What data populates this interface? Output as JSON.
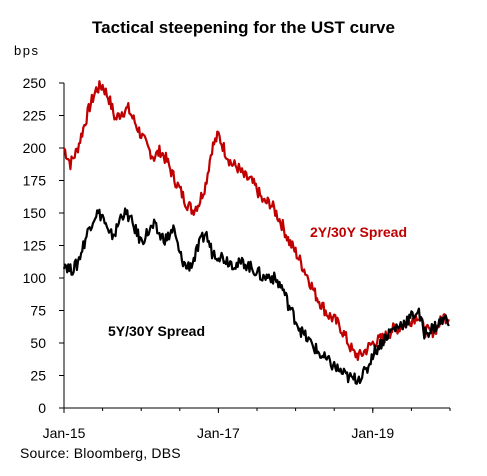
{
  "source": "Source: Bloomberg, DBS",
  "chart_data": {
    "type": "line",
    "title": "Tactical steepening for the UST curve",
    "ylabel": "bps",
    "xlabel": "",
    "ylim": [
      0,
      250
    ],
    "yticks": [
      0,
      25,
      50,
      75,
      100,
      125,
      150,
      175,
      200,
      225,
      250
    ],
    "xlim": [
      "2015-01",
      "2019-12"
    ],
    "xticks": [
      {
        "value": "2015-01",
        "label": "Jan-15"
      },
      {
        "value": "2017-01",
        "label": "Jan-17"
      },
      {
        "value": "2019-01",
        "label": "Jan-19"
      }
    ],
    "grid": false,
    "series": [
      {
        "name": "2Y/30Y Spread",
        "color": "#c00000",
        "x": [
          "2015-01",
          "2015-02",
          "2015-03",
          "2015-04",
          "2015-05",
          "2015-06",
          "2015-07",
          "2015-08",
          "2015-09",
          "2015-10",
          "2015-11",
          "2015-12",
          "2016-01",
          "2016-02",
          "2016-03",
          "2016-04",
          "2016-05",
          "2016-06",
          "2016-07",
          "2016-08",
          "2016-09",
          "2016-10",
          "2016-11",
          "2016-12",
          "2017-01",
          "2017-02",
          "2017-03",
          "2017-04",
          "2017-05",
          "2017-06",
          "2017-07",
          "2017-08",
          "2017-09",
          "2017-10",
          "2017-11",
          "2017-12",
          "2018-01",
          "2018-02",
          "2018-03",
          "2018-04",
          "2018-05",
          "2018-06",
          "2018-07",
          "2018-08",
          "2018-09",
          "2018-10",
          "2018-11",
          "2018-12",
          "2019-01",
          "2019-02",
          "2019-03",
          "2019-04",
          "2019-05",
          "2019-06",
          "2019-07",
          "2019-08",
          "2019-09",
          "2019-10",
          "2019-11",
          "2019-12"
        ],
        "values": [
          200,
          188,
          198,
          215,
          232,
          245,
          248,
          238,
          222,
          228,
          230,
          220,
          210,
          200,
          193,
          198,
          190,
          178,
          168,
          158,
          152,
          158,
          172,
          200,
          210,
          198,
          188,
          185,
          178,
          175,
          168,
          158,
          158,
          150,
          140,
          128,
          120,
          110,
          100,
          88,
          80,
          72,
          68,
          62,
          52,
          42,
          40,
          45,
          50,
          52,
          55,
          60,
          62,
          64,
          68,
          72,
          60,
          58,
          62,
          70
        ]
      },
      {
        "name": "5Y/30Y Spread",
        "color": "#000000",
        "x": [
          "2015-01",
          "2015-02",
          "2015-03",
          "2015-04",
          "2015-05",
          "2015-06",
          "2015-07",
          "2015-08",
          "2015-09",
          "2015-10",
          "2015-11",
          "2015-12",
          "2016-01",
          "2016-02",
          "2016-03",
          "2016-04",
          "2016-05",
          "2016-06",
          "2016-07",
          "2016-08",
          "2016-09",
          "2016-10",
          "2016-11",
          "2016-12",
          "2017-01",
          "2017-02",
          "2017-03",
          "2017-04",
          "2017-05",
          "2017-06",
          "2017-07",
          "2017-08",
          "2017-09",
          "2017-10",
          "2017-11",
          "2017-12",
          "2018-01",
          "2018-02",
          "2018-03",
          "2018-04",
          "2018-05",
          "2018-06",
          "2018-07",
          "2018-08",
          "2018-09",
          "2018-10",
          "2018-11",
          "2018-12",
          "2019-01",
          "2019-02",
          "2019-03",
          "2019-04",
          "2019-05",
          "2019-06",
          "2019-07",
          "2019-08",
          "2019-09",
          "2019-10",
          "2019-11",
          "2019-12"
        ],
        "values": [
          112,
          106,
          110,
          125,
          140,
          150,
          148,
          132,
          135,
          150,
          148,
          138,
          128,
          135,
          140,
          132,
          130,
          138,
          118,
          108,
          112,
          125,
          135,
          120,
          118,
          115,
          112,
          110,
          112,
          108,
          105,
          100,
          102,
          98,
          92,
          78,
          68,
          58,
          52,
          46,
          40,
          36,
          32,
          28,
          24,
          22,
          24,
          28,
          42,
          48,
          55,
          60,
          63,
          66,
          70,
          75,
          58,
          60,
          64,
          68
        ]
      }
    ],
    "annotations": [
      {
        "text": "2Y/30Y Spread",
        "series": 0
      },
      {
        "text": "5Y/30Y Spread",
        "series": 1
      }
    ],
    "legend": "none"
  }
}
